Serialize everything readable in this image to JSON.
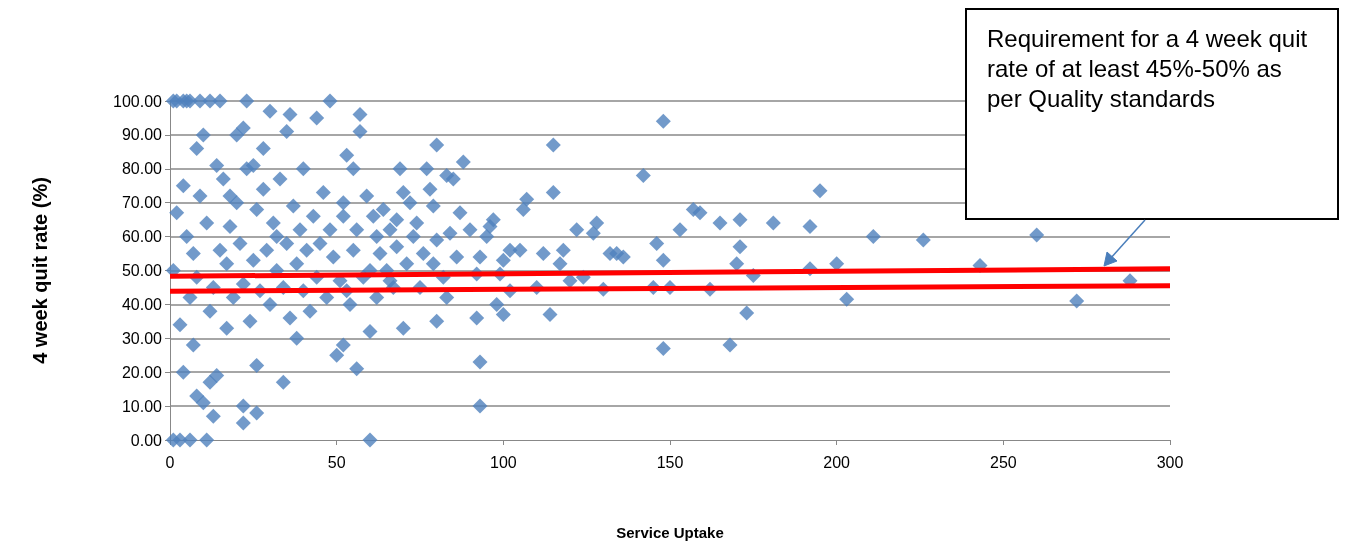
{
  "chart_data": {
    "type": "scatter",
    "xlabel": "Service Uptake",
    "ylabel": "4 week quit rate (%)",
    "xlim": [
      0,
      300
    ],
    "xticks": [
      0,
      50,
      100,
      150,
      200,
      250,
      300
    ],
    "ylim": [
      0,
      100
    ],
    "yticks": [
      {
        "value": 0,
        "label": "0.00"
      },
      {
        "value": 10,
        "label": "10.00"
      },
      {
        "value": 20,
        "label": "20.00"
      },
      {
        "value": 30,
        "label": "30.00"
      },
      {
        "value": 40,
        "label": "40.00"
      },
      {
        "value": 50,
        "label": "50.00"
      },
      {
        "value": 60,
        "label": "60.00"
      },
      {
        "value": 70,
        "label": "70.00"
      },
      {
        "value": 80,
        "label": "80.00"
      },
      {
        "value": 90,
        "label": "90.00"
      },
      {
        "value": 100,
        "label": "100.00"
      }
    ],
    "grid": "y",
    "marker": "diamond",
    "annotations": [
      "Requirement for a 4 week quit rate of at least 45%-50% as per Quality standards"
    ],
    "series": [
      {
        "color": "#4f81bd",
        "x": [
          115,
          115,
          142,
          148,
          195,
          192,
          181,
          171,
          165,
          157,
          159,
          153,
          226,
          211,
          260,
          243,
          200,
          192,
          203,
          272,
          288,
          168,
          148,
          146,
          148,
          150,
          145,
          173,
          175,
          171,
          170,
          162,
          132,
          134,
          128,
          127,
          122,
          130,
          136,
          118,
          117,
          114,
          120,
          124,
          112,
          110,
          107,
          106,
          105,
          102,
          100,
          99,
          98,
          96,
          95,
          93,
          92,
          92,
          93,
          93,
          97,
          100,
          102,
          90,
          88,
          85,
          83,
          80,
          79,
          80,
          82,
          80,
          83,
          78,
          77,
          72,
          70,
          69,
          68,
          68,
          66,
          70,
          64,
          62,
          60,
          60,
          60,
          57,
          57,
          55,
          53,
          52,
          54,
          56,
          52,
          50,
          48,
          44,
          40,
          40,
          38,
          36,
          35,
          34,
          32,
          30,
          28,
          26,
          26,
          25,
          23,
          22,
          22,
          22,
          20,
          18,
          17,
          15,
          14,
          14,
          13,
          12,
          12,
          11,
          10,
          10,
          9,
          8,
          8,
          7,
          6,
          6,
          5,
          4,
          4,
          3,
          2,
          1,
          1,
          1,
          2,
          3,
          4,
          5,
          6,
          7,
          8,
          9,
          11,
          12,
          13,
          15,
          16,
          17,
          18,
          19,
          20,
          21,
          22,
          23,
          24,
          25,
          26,
          27,
          28,
          29,
          30,
          31,
          32,
          33,
          34,
          35,
          36,
          37,
          38,
          39,
          41,
          42,
          43,
          44,
          45,
          46,
          47,
          48,
          49,
          51,
          52,
          53,
          55,
          56,
          58,
          59,
          61,
          62,
          63,
          65,
          66,
          67,
          71,
          73,
          74,
          75,
          76,
          79,
          84,
          86,
          87
        ],
        "values": [
          87,
          73,
          78,
          94,
          73.5,
          63,
          64,
          65,
          64,
          68,
          67,
          62,
          59,
          60,
          60.5,
          51.5,
          52,
          50.5,
          41.5,
          41,
          47,
          28,
          27,
          58,
          53,
          45,
          45,
          37.5,
          48.5,
          57,
          52,
          44.5,
          55,
          55,
          64,
          61,
          62,
          44.5,
          54,
          56,
          52,
          37,
          47,
          48,
          55,
          45,
          71,
          68,
          56,
          56,
          53,
          49,
          40,
          63,
          60,
          54,
          49,
          36,
          23,
          10,
          65,
          37,
          44,
          62,
          82,
          77,
          78,
          87,
          69,
          59,
          48,
          35,
          42,
          74,
          80,
          70,
          73,
          80,
          65,
          57,
          47,
          33,
          68,
          60,
          50,
          0,
          32,
          91,
          96,
          80,
          84,
          66,
          40,
          21,
          28,
          25,
          100,
          95,
          80,
          44,
          30,
          96,
          91,
          17,
          60,
          97,
          86,
          22,
          8,
          81,
          100,
          92,
          5,
          10,
          90,
          72,
          52,
          100,
          81,
          19,
          7,
          100,
          17,
          0,
          90,
          11,
          100,
          86,
          13,
          28,
          100,
          0,
          100,
          100,
          20,
          0,
          100,
          100,
          50,
          0,
          67,
          34,
          75,
          60,
          42,
          55,
          48,
          72,
          64,
          38,
          45,
          56,
          77,
          33,
          63,
          42,
          70,
          58,
          46,
          80,
          35,
          53,
          68,
          44,
          74,
          56,
          40,
          64,
          50,
          77,
          45,
          58,
          36,
          69,
          52,
          62,
          56,
          38,
          66,
          48,
          58,
          73,
          42,
          62,
          54,
          47,
          70,
          44,
          56,
          62,
          48,
          72,
          66,
          42,
          55,
          50,
          62,
          45,
          52,
          60,
          64,
          45,
          55,
          52,
          61,
          54,
          67
        ]
      },
      {
        "type": "line",
        "color": "#ff0000",
        "x": [
          0,
          300
        ],
        "values": [
          48.3,
          50.5
        ],
        "marker": "none"
      },
      {
        "type": "line",
        "color": "#ff0000",
        "x": [
          0,
          300
        ],
        "values": [
          43.9,
          45.5
        ],
        "marker": "none"
      }
    ]
  }
}
